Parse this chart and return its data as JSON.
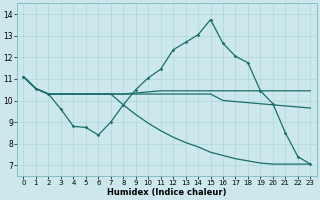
{
  "xlabel": "Humidex (Indice chaleur)",
  "background_color": "#cce8ec",
  "line_color": "#1a6e6a",
  "xlim": [
    -0.5,
    23.5
  ],
  "ylim": [
    6.5,
    14.5
  ],
  "xticks": [
    0,
    1,
    2,
    3,
    4,
    5,
    6,
    7,
    8,
    9,
    10,
    11,
    12,
    13,
    14,
    15,
    16,
    17,
    18,
    19,
    20,
    21,
    22,
    23
  ],
  "yticks": [
    7,
    8,
    9,
    10,
    11,
    12,
    13,
    14
  ],
  "line1_marked": [
    11.1,
    10.55,
    10.3,
    9.6,
    8.8,
    8.75,
    8.4,
    9.0,
    9.8,
    10.5,
    11.05,
    11.45,
    12.35,
    12.7,
    13.05,
    13.75,
    12.65,
    12.05,
    11.75,
    10.45,
    9.85,
    8.5,
    7.4,
    7.05
  ],
  "line2_upper_flat": [
    11.1,
    10.55,
    10.3,
    10.3,
    10.3,
    10.3,
    10.3,
    10.3,
    10.3,
    10.35,
    10.4,
    10.45,
    10.45,
    10.45,
    10.45,
    10.45,
    10.45,
    10.45,
    10.45,
    10.45,
    10.45,
    10.45,
    10.45,
    10.45
  ],
  "line3_lower_flat": [
    11.1,
    10.55,
    10.3,
    10.3,
    10.3,
    10.3,
    10.3,
    10.3,
    10.3,
    10.3,
    10.3,
    10.3,
    10.3,
    10.3,
    10.3,
    10.3,
    10.0,
    9.95,
    9.9,
    9.85,
    9.8,
    9.75,
    9.7,
    9.65
  ],
  "line4_diagonal": [
    11.1,
    10.55,
    10.3,
    10.3,
    10.3,
    10.3,
    10.3,
    10.3,
    9.8,
    9.35,
    8.95,
    8.6,
    8.3,
    8.05,
    7.85,
    7.6,
    7.45,
    7.3,
    7.2,
    7.1,
    7.05,
    7.05,
    7.05,
    7.05
  ]
}
